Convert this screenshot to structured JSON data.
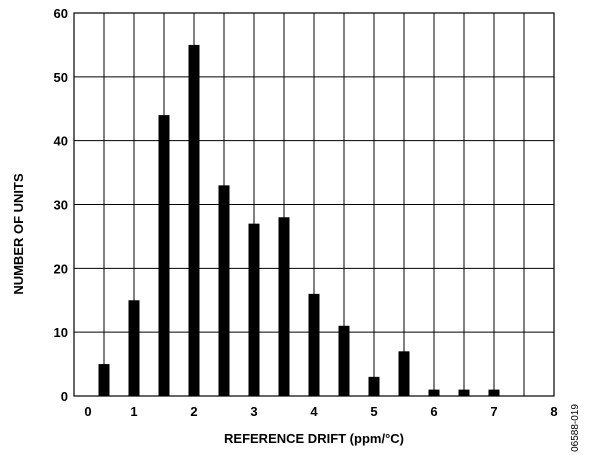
{
  "chart_data": {
    "type": "bar",
    "x": [
      0.5,
      1,
      1.5,
      2,
      2.5,
      3,
      3.5,
      4,
      4.5,
      5,
      5.5,
      6,
      6.5,
      7,
      7.5
    ],
    "values": [
      5,
      15,
      44,
      55,
      33,
      27,
      28,
      16,
      11,
      3,
      7,
      1,
      1,
      1,
      0
    ],
    "xlabel": "REFERENCE DRIFT (ppm/°C)",
    "ylabel": "NUMBER OF UNITS",
    "xlim": [
      0,
      8
    ],
    "ylim": [
      0,
      60
    ],
    "xticks": [
      "0",
      "1",
      "2",
      "3",
      "4",
      "5",
      "6",
      "7",
      "8"
    ],
    "yticks": [
      "0",
      "10",
      "20",
      "30",
      "40",
      "50",
      "60"
    ],
    "grid": true,
    "legend": "none"
  },
  "figure_code": "06588-019"
}
